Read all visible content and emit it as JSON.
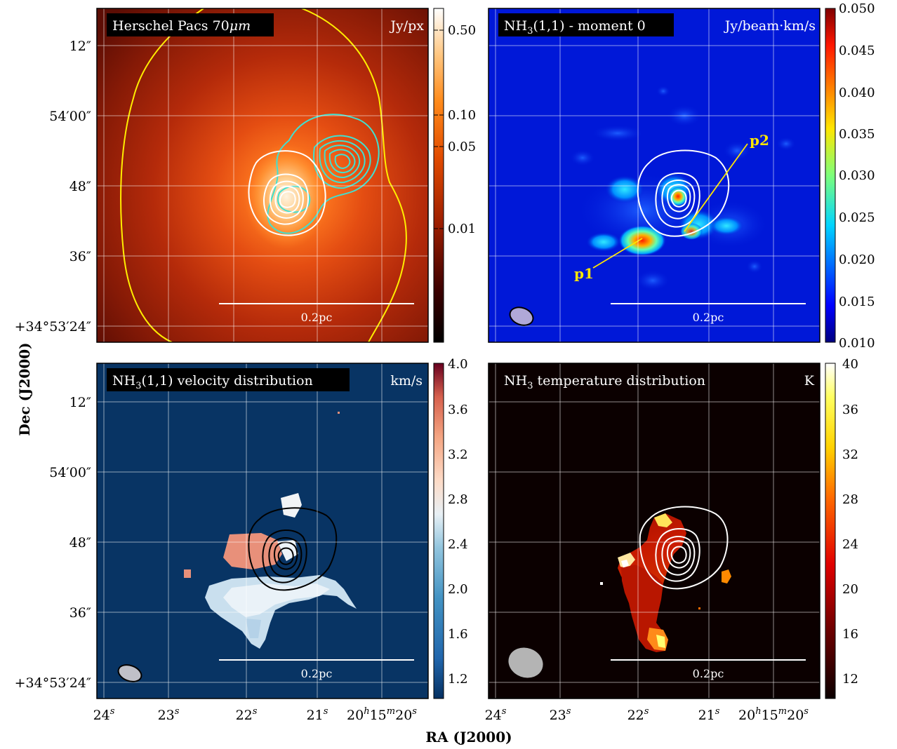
{
  "figure": {
    "xlabel": "RA (J2000)",
    "ylabel": "Dec (J2000)",
    "ra_tick_labels": [
      "24",
      "23",
      "22",
      "21",
      "20",
      "15",
      "20"
    ],
    "ra_tick_labels_rich": [
      {
        "base": "24",
        "sup": "s"
      },
      {
        "base": "23",
        "sup": "s"
      },
      {
        "base": "22",
        "sup": "s"
      },
      {
        "base": "21",
        "sup": "s"
      },
      {
        "base": "20",
        "sup": "h",
        "base2": "15",
        "sup2": "m",
        "base3": "20",
        "sup3": "s"
      }
    ],
    "dec_tick_labels": [
      "12″",
      "54′00″",
      "48″",
      "36″",
      "+34°53′24″"
    ],
    "scale_bar_label": "0.2pc"
  },
  "chart_data": [
    {
      "type": "heatmap",
      "id": "pacs70",
      "title": "Herschel Pacs 70μm",
      "title_parts": {
        "text": "Herschel Pacs 70",
        "italic": "μm"
      },
      "unit": "Jy/px",
      "colormap": "black-red-orange-white (log stretch)",
      "colorbar_ticks": [
        "0.50",
        "0.10",
        "0.05",
        "0.01"
      ],
      "colorbar_values": [
        0.5,
        0.1,
        0.05,
        0.01
      ],
      "colorbar_scale": "log",
      "colorbar_range": [
        0.0,
        0.7
      ],
      "contours": [
        {
          "color": "#ffff00",
          "description": "large outer contour"
        },
        {
          "color": "#40e0d0",
          "levels": 6
        },
        {
          "color": "#ffffff",
          "levels": 5
        }
      ],
      "scale_bar": "0.2pc"
    },
    {
      "type": "heatmap",
      "id": "nh3_moment0",
      "title": "NH3(1,1) - moment 0",
      "title_parts": {
        "text": "NH",
        "sub": "3",
        "rest": "(1,1) - moment 0"
      },
      "unit": "Jy/beam·km/s",
      "colormap": "jet",
      "colorbar_ticks": [
        "0.050",
        "0.045",
        "0.040",
        "0.035",
        "0.030",
        "0.025",
        "0.020",
        "0.015",
        "0.010"
      ],
      "colorbar_range": [
        0.01,
        0.05
      ],
      "peaks": [
        {
          "label": "p1",
          "color": "#ffe600"
        },
        {
          "label": "p2",
          "color": "#ffe600"
        }
      ],
      "contours": [
        {
          "color": "#ffffff",
          "levels": 5
        }
      ],
      "beam_color": "#b0a8d8",
      "scale_bar": "0.2pc"
    },
    {
      "type": "heatmap",
      "id": "nh3_velocity",
      "title": "NH3(1,1) velocity distribution",
      "title_parts": {
        "text": "NH",
        "sub": "3",
        "rest": "(1,1) velocity distribution"
      },
      "unit": "km/s",
      "colormap": "RdBu_r",
      "colorbar_ticks": [
        "4.0",
        "3.6",
        "3.2",
        "2.8",
        "2.4",
        "2.0",
        "1.6",
        "1.2"
      ],
      "colorbar_range": [
        1.0,
        4.0
      ],
      "contours": [
        {
          "color": "#000000",
          "levels": 5
        }
      ],
      "beam_color": "#c0c0c8",
      "scale_bar": "0.2pc"
    },
    {
      "type": "heatmap",
      "id": "nh3_temperature",
      "title": "NH3 temperature distribution",
      "title_parts": {
        "text": "NH",
        "sub": "3",
        "rest": " temperature distribution"
      },
      "unit": "K",
      "colormap": "hot",
      "colorbar_ticks": [
        "40",
        "36",
        "32",
        "28",
        "24",
        "20",
        "16",
        "12"
      ],
      "colorbar_range": [
        10,
        40
      ],
      "contours": [
        {
          "color": "#ffffff",
          "levels": 5
        }
      ],
      "beam_color": "#b4b4b4",
      "scale_bar": "0.2pc"
    }
  ]
}
